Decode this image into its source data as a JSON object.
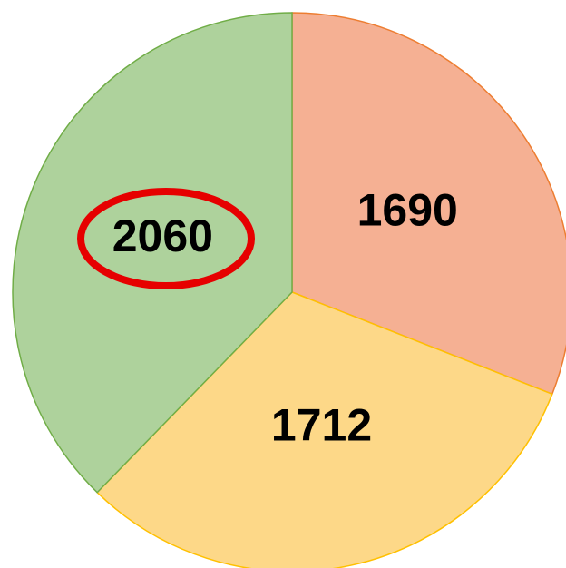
{
  "chart_data": {
    "type": "pie",
    "categories": [
      null,
      null,
      null
    ],
    "values": [
      1690,
      1712,
      2060
    ],
    "colors": [
      "#f5b093",
      "#fdd888",
      "#aed29c"
    ],
    "edge_colors": [
      "#ed7d31",
      "#ffc000",
      "#70ad47"
    ],
    "start_angle": 0,
    "direction": "clockwise"
  }
}
